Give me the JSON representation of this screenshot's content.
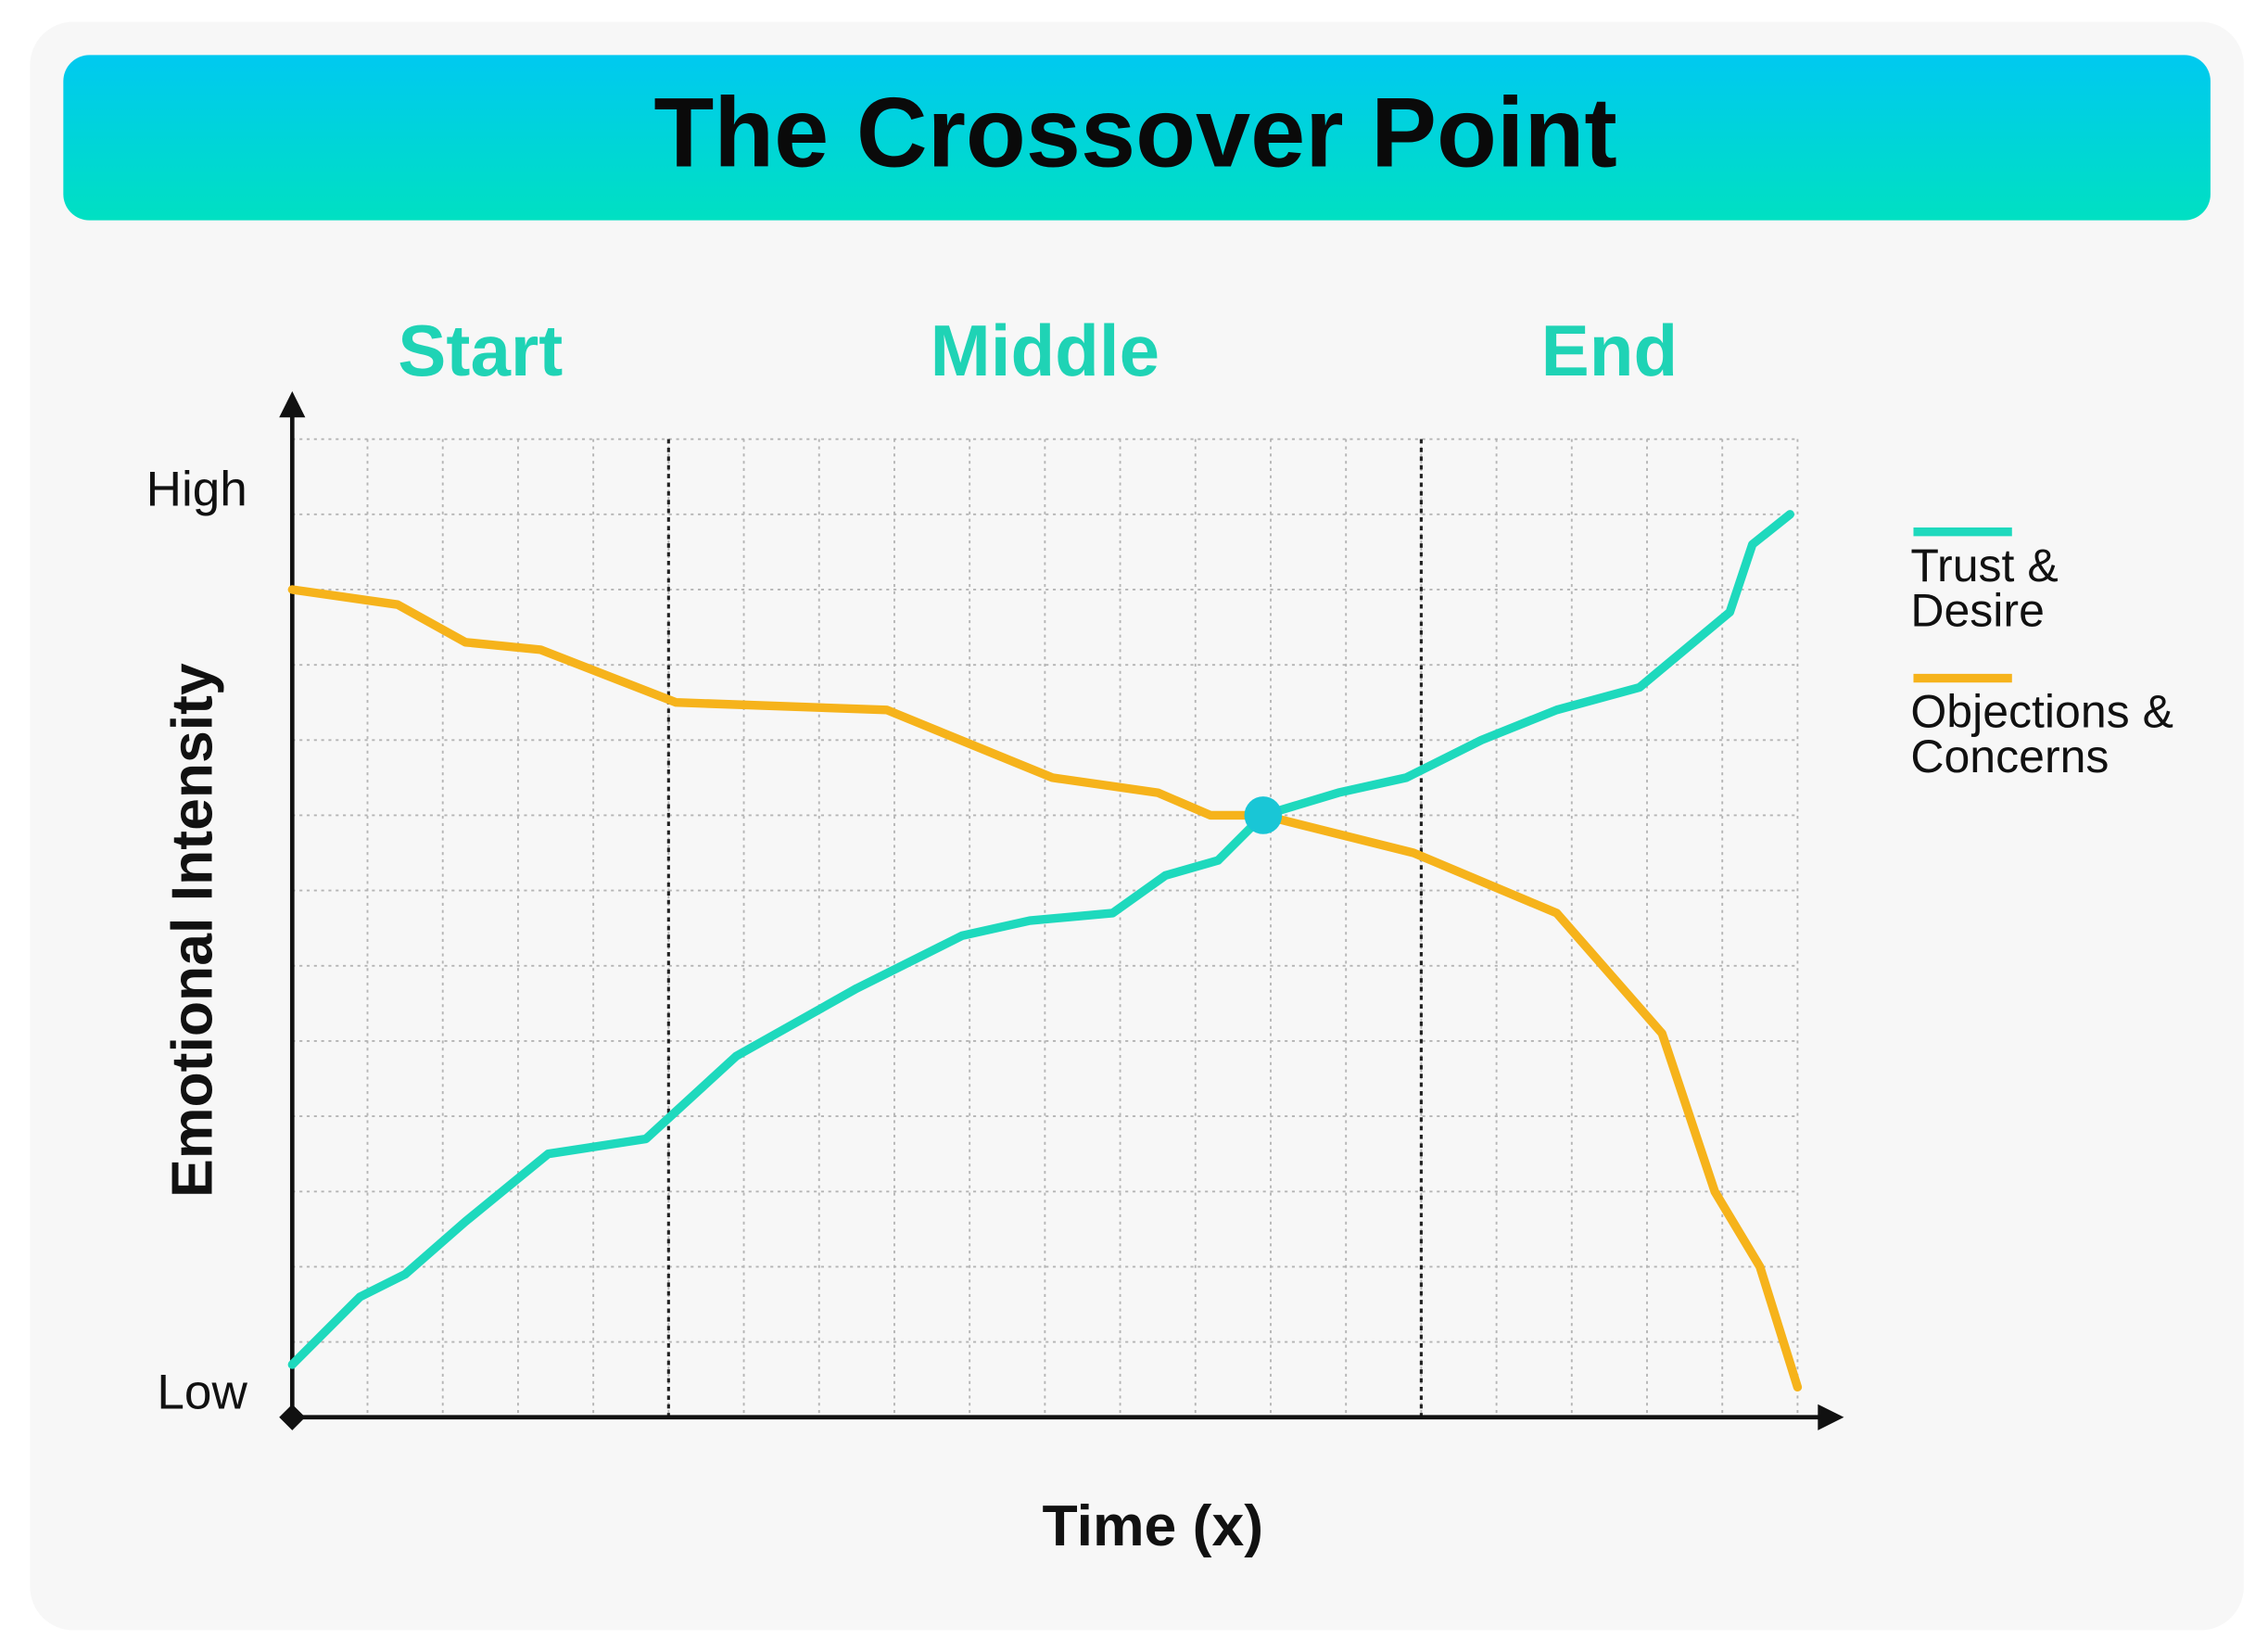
{
  "chart_data": {
    "type": "line",
    "title": "The Crossover Point",
    "x_label": "Time (x)",
    "y_label": "Emotional Intensity",
    "xlim": [
      0,
      20
    ],
    "ylim": [
      0,
      13
    ],
    "yticks": [
      {
        "value": 12,
        "label": "High"
      },
      {
        "value": 0,
        "label": "Low"
      }
    ],
    "grid": true,
    "legend": "right",
    "sections": [
      {
        "label": "Start",
        "start": 0,
        "end": 5
      },
      {
        "label": "Middle",
        "start": 5,
        "end": 15
      },
      {
        "label": "End",
        "start": 15,
        "end": 20
      }
    ],
    "series": [
      {
        "name": "Trust & Desire",
        "color": "#1ed9bd",
        "x": [
          0,
          0.9,
          1.5,
          2.3,
          3.4,
          4.7,
          5.9,
          7.5,
          8.9,
          9.8,
          10.9,
          11.6,
          12.3,
          12.9,
          13.9,
          14.8,
          15.8,
          16.8,
          17.9,
          19.1,
          19.4,
          19.9
        ],
        "values": [
          0.7,
          1.6,
          1.9,
          2.6,
          3.5,
          3.7,
          4.8,
          5.7,
          6.4,
          6.6,
          6.7,
          7.2,
          7.4,
          8.0,
          8.3,
          8.5,
          9.0,
          9.4,
          9.7,
          10.7,
          11.6,
          12.0
        ]
      },
      {
        "name": "Objections & Concerns",
        "color": "#f6b31b",
        "x": [
          0,
          1.4,
          2.3,
          3.3,
          5.1,
          7.9,
          10.1,
          11.5,
          12.2,
          12.9,
          14.9,
          16.8,
          18.2,
          18.9,
          19.5,
          20.0
        ],
        "values": [
          11.0,
          10.8,
          10.3,
          10.2,
          9.5,
          9.4,
          8.5,
          8.3,
          8.0,
          8.0,
          7.5,
          6.7,
          5.1,
          3.0,
          2.0,
          0.4
        ]
      }
    ],
    "crossover": {
      "x": 12.9,
      "y": 8.0,
      "color": "#19c6d6"
    }
  }
}
